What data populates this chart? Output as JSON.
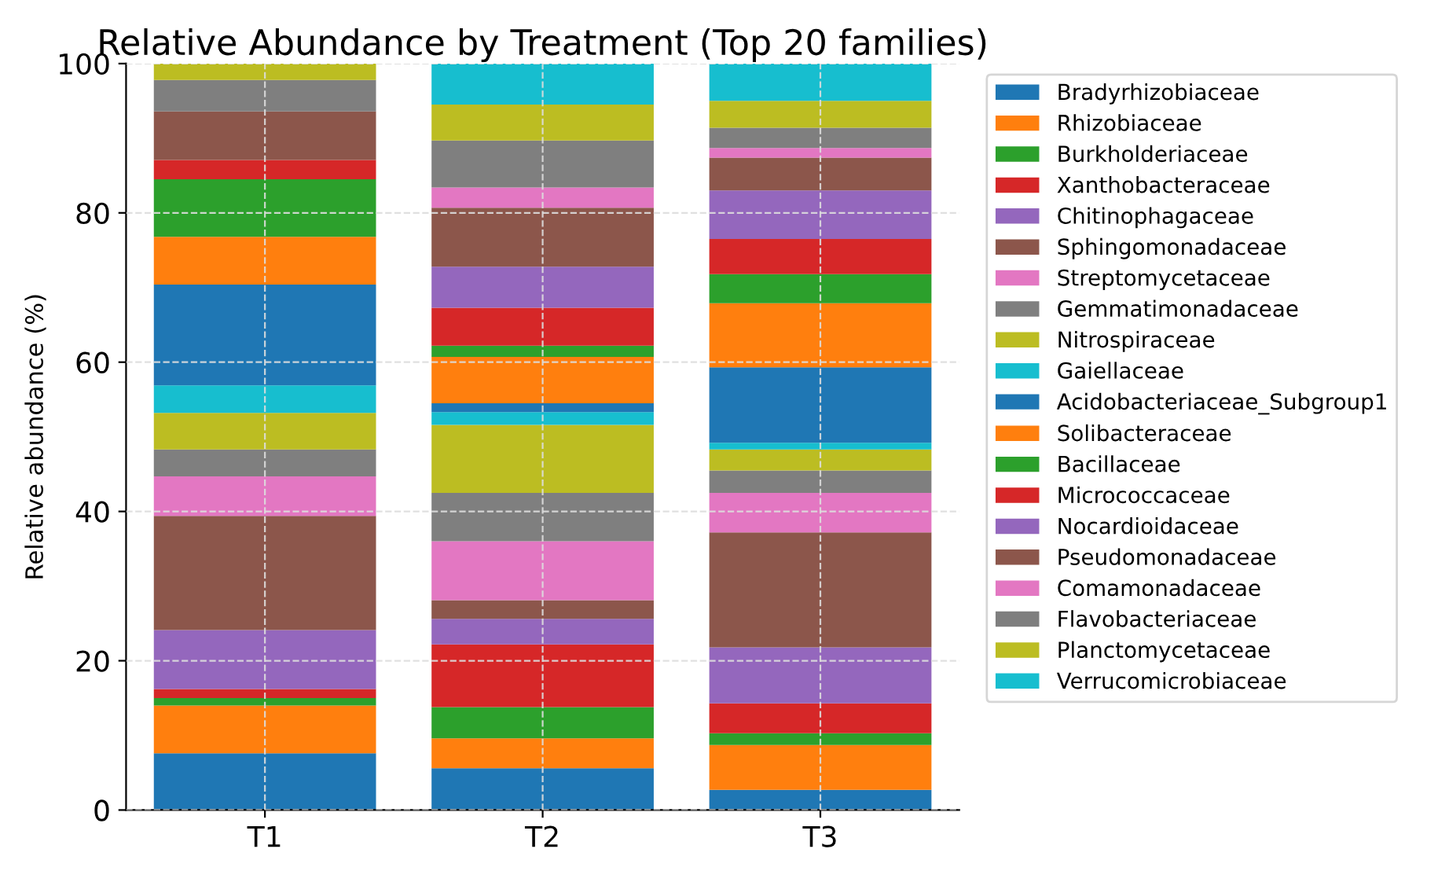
{
  "chart_data": {
    "type": "bar",
    "title": "Relative Abundance by Treatment (Top 20 families)",
    "ylabel": "Relative abundance (%)",
    "categories": [
      "T1",
      "T2",
      "T3"
    ],
    "stacked": true,
    "ylim": [
      0,
      100
    ],
    "yticks": [
      0,
      20,
      40,
      60,
      80,
      100
    ],
    "grid": true,
    "legend": "right",
    "series": [
      {
        "name": "Bradyrhizobiaceae",
        "color": "#1f77b4",
        "values": [
          7.6,
          5.6,
          2.7
        ]
      },
      {
        "name": "Rhizobiaceae",
        "color": "#ff7f0e",
        "values": [
          6.4,
          4.0,
          6.0
        ]
      },
      {
        "name": "Burkholderiaceae",
        "color": "#2ca02c",
        "values": [
          1.0,
          4.2,
          1.6
        ]
      },
      {
        "name": "Xanthobacteraceae",
        "color": "#d62728",
        "values": [
          1.2,
          8.4,
          4.0
        ]
      },
      {
        "name": "Chitinophagaceae",
        "color": "#9467bd",
        "values": [
          7.9,
          3.4,
          7.5
        ]
      },
      {
        "name": "Sphingomonadaceae",
        "color": "#8c564b",
        "values": [
          15.3,
          2.5,
          15.4
        ]
      },
      {
        "name": "Streptomycetaceae",
        "color": "#e377c2",
        "values": [
          5.3,
          7.9,
          5.3
        ]
      },
      {
        "name": "Gemmatimonadaceae",
        "color": "#7f7f7f",
        "values": [
          3.6,
          6.5,
          3.0
        ]
      },
      {
        "name": "Nitrospiraceae",
        "color": "#bcbd22",
        "values": [
          4.9,
          9.1,
          2.8
        ]
      },
      {
        "name": "Gaiellaceae",
        "color": "#17becf",
        "values": [
          3.7,
          1.7,
          0.9
        ]
      },
      {
        "name": "Acidobacteriaceae_Subgroup1",
        "color": "#1f77b4",
        "values": [
          13.5,
          1.2,
          10.1
        ]
      },
      {
        "name": "Solibacteraceae",
        "color": "#ff7f0e",
        "values": [
          6.4,
          6.2,
          8.6
        ]
      },
      {
        "name": "Bacillaceae",
        "color": "#2ca02c",
        "values": [
          7.7,
          1.5,
          3.9
        ]
      },
      {
        "name": "Micrococcaceae",
        "color": "#d62728",
        "values": [
          2.6,
          5.1,
          4.7
        ]
      },
      {
        "name": "Nocardioidaceae",
        "color": "#9467bd",
        "values": [
          0,
          5.5,
          6.5
        ]
      },
      {
        "name": "Pseudomonadaceae",
        "color": "#8c564b",
        "values": [
          6.5,
          7.9,
          4.4
        ]
      },
      {
        "name": "Comamonadaceae",
        "color": "#e377c2",
        "values": [
          0,
          2.7,
          1.3
        ]
      },
      {
        "name": "Flavobacteriaceae",
        "color": "#7f7f7f",
        "values": [
          4.2,
          6.3,
          2.7
        ]
      },
      {
        "name": "Planctomycetaceae",
        "color": "#bcbd22",
        "values": [
          2.2,
          4.8,
          3.6
        ]
      },
      {
        "name": "Verrucomicrobiaceae",
        "color": "#17becf",
        "values": [
          0,
          5.5,
          5.0
        ]
      }
    ]
  }
}
